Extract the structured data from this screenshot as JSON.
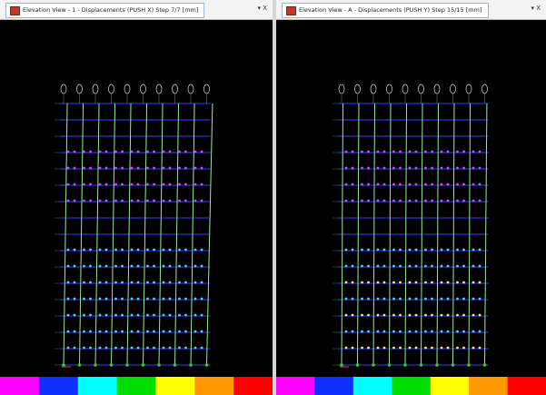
{
  "windows": [
    {
      "title": "Elevation View - 1  - Displacements (PUSH X)  Step 7/7  [mm]",
      "controls": "▾ X"
    },
    {
      "title": "Elevation View - A  - Displacements (PUSH Y)  Step 15/15  [mm]",
      "controls": "▾ X"
    }
  ]
}
